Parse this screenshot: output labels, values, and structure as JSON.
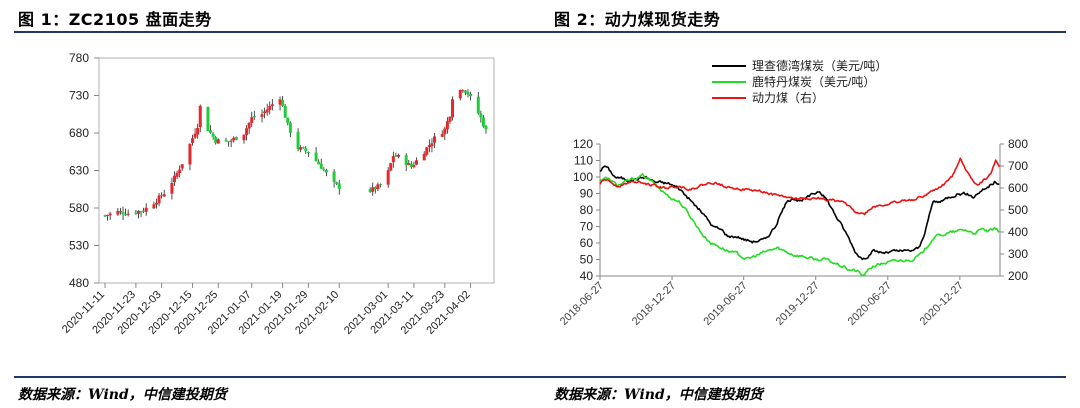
{
  "left": {
    "title": "图 1：ZC2105 盘面走势",
    "source": "数据来源：Wind，中信建投期货"
  },
  "right": {
    "title": "图 2：动力煤现货走势",
    "source": "数据来源：Wind，中信建投期货"
  },
  "colors": {
    "rule": "#1f3864",
    "up": "#e8262b",
    "down": "#1ecc3a",
    "line_black": "#000000",
    "line_green": "#22dd22",
    "line_red": "#ee1111"
  },
  "chart_data": [
    {
      "type": "candlestick",
      "title": "",
      "xlabel": "",
      "ylabel": "",
      "ylim": [
        480,
        780
      ],
      "yticks": [
        480,
        530,
        580,
        630,
        680,
        730,
        780
      ],
      "xticks": [
        "2020-11-11",
        "2020-11-23",
        "2020-12-03",
        "2020-12-15",
        "2020-12-25",
        "2021-01-07",
        "2021-01-19",
        "2021-01-29",
        "2021-02-10",
        "2021-03-01",
        "2021-03-11",
        "2021-03-23",
        "2021-04-02"
      ],
      "grid": false,
      "x_start": "2020-11-11",
      "x_end": "2021-04-08",
      "close_series": [
        [
          "2020-11-11",
          570
        ],
        [
          "2020-11-16",
          575
        ],
        [
          "2020-11-20",
          573
        ],
        [
          "2020-11-26",
          577
        ],
        [
          "2020-12-01",
          590
        ],
        [
          "2020-12-04",
          600
        ],
        [
          "2020-12-08",
          620
        ],
        [
          "2020-12-11",
          640
        ],
        [
          "2020-12-14",
          665
        ],
        [
          "2020-12-17",
          690
        ],
        [
          "2020-12-18",
          715
        ],
        [
          "2020-12-21",
          685
        ],
        [
          "2020-12-24",
          670
        ],
        [
          "2020-12-29",
          668
        ],
        [
          "2021-01-04",
          680
        ],
        [
          "2021-01-07",
          700
        ],
        [
          "2021-01-11",
          705
        ],
        [
          "2021-01-14",
          715
        ],
        [
          "2021-01-18",
          728
        ],
        [
          "2021-01-19",
          715
        ],
        [
          "2021-01-21",
          690
        ],
        [
          "2021-01-25",
          660
        ],
        [
          "2021-01-29",
          655
        ],
        [
          "2021-02-03",
          635
        ],
        [
          "2021-02-08",
          612
        ],
        [
          "2021-02-10",
          608
        ],
        [
          "2021-02-22",
          603
        ],
        [
          "2021-02-26",
          610
        ],
        [
          "2021-03-01",
          628
        ],
        [
          "2021-03-03",
          650
        ],
        [
          "2021-03-05",
          648
        ],
        [
          "2021-03-10",
          635
        ],
        [
          "2021-03-12",
          643
        ],
        [
          "2021-03-16",
          660
        ],
        [
          "2021-03-19",
          673
        ],
        [
          "2021-03-23",
          685
        ],
        [
          "2021-03-25",
          705
        ],
        [
          "2021-03-26",
          728
        ],
        [
          "2021-03-30",
          740
        ],
        [
          "2021-04-01",
          733
        ],
        [
          "2021-04-06",
          700
        ],
        [
          "2021-04-08",
          683
        ]
      ]
    },
    {
      "type": "line",
      "title": "",
      "xlabel": "",
      "xticks": [
        "2018-06-27",
        "2018-12-27",
        "2019-06-27",
        "2019-12-27",
        "2020-06-27",
        "2020-12-27"
      ],
      "x_start": "2018-06-27",
      "x_end": "2021-04-08",
      "y_left": {
        "ylim": [
          40,
          120
        ],
        "yticks": [
          40,
          50,
          60,
          70,
          80,
          90,
          100,
          110,
          120
        ]
      },
      "y_right": {
        "ylim": [
          200,
          800
        ],
        "yticks": [
          200,
          300,
          400,
          500,
          600,
          700,
          800
        ]
      },
      "legend_position": "top",
      "series": [
        {
          "name": "理查德湾煤炭（美元/吨）",
          "axis": "left",
          "color": "#000000",
          "points": [
            [
              "2018-06-27",
              104
            ],
            [
              "2018-07-10",
              107
            ],
            [
              "2018-08-05",
              100
            ],
            [
              "2018-09-10",
              98
            ],
            [
              "2018-10-20",
              100
            ],
            [
              "2018-11-15",
              97
            ],
            [
              "2018-12-20",
              96
            ],
            [
              "2019-01-15",
              93
            ],
            [
              "2019-02-15",
              85
            ],
            [
              "2019-03-15",
              78
            ],
            [
              "2019-04-10",
              70
            ],
            [
              "2019-05-01",
              68
            ],
            [
              "2019-05-20",
              64
            ],
            [
              "2019-06-10",
              64
            ],
            [
              "2019-07-01",
              62
            ],
            [
              "2019-07-20",
              61
            ],
            [
              "2019-08-20",
              62
            ],
            [
              "2019-09-15",
              70
            ],
            [
              "2019-10-10",
              83
            ],
            [
              "2019-10-30",
              88
            ],
            [
              "2019-11-20",
              85
            ],
            [
              "2019-12-10",
              88
            ],
            [
              "2020-01-05",
              92
            ],
            [
              "2020-01-25",
              86
            ],
            [
              "2020-02-10",
              79
            ],
            [
              "2020-03-01",
              71
            ],
            [
              "2020-03-20",
              63
            ],
            [
              "2020-04-05",
              55
            ],
            [
              "2020-04-25",
              50
            ],
            [
              "2020-05-20",
              55
            ],
            [
              "2020-06-20",
              54
            ],
            [
              "2020-07-20",
              55
            ],
            [
              "2020-08-20",
              55
            ],
            [
              "2020-09-15",
              57
            ],
            [
              "2020-10-01",
              68
            ],
            [
              "2020-10-20",
              85
            ],
            [
              "2020-11-10",
              85
            ],
            [
              "2020-11-30",
              88
            ],
            [
              "2020-12-20",
              90
            ],
            [
              "2021-01-10",
              90
            ],
            [
              "2021-01-30",
              88
            ],
            [
              "2021-02-20",
              92
            ],
            [
              "2021-03-10",
              94
            ],
            [
              "2021-03-25",
              97
            ],
            [
              "2021-04-08",
              95
            ]
          ]
        },
        {
          "name": "鹿特丹煤炭（美元/吨）",
          "axis": "left",
          "color": "#22dd22",
          "points": [
            [
              "2018-06-27",
              98
            ],
            [
              "2018-07-10",
              100
            ],
            [
              "2018-08-10",
              95
            ],
            [
              "2018-09-10",
              98
            ],
            [
              "2018-10-15",
              101
            ],
            [
              "2018-11-01",
              98
            ],
            [
              "2018-11-25",
              93
            ],
            [
              "2018-12-20",
              88
            ],
            [
              "2019-01-15",
              85
            ],
            [
              "2019-02-15",
              75
            ],
            [
              "2019-03-15",
              65
            ],
            [
              "2019-04-05",
              60
            ],
            [
              "2019-04-25",
              58
            ],
            [
              "2019-05-20",
              55
            ],
            [
              "2019-06-15",
              53
            ],
            [
              "2019-07-05",
              50
            ],
            [
              "2019-07-25",
              52
            ],
            [
              "2019-08-25",
              55
            ],
            [
              "2019-09-20",
              57
            ],
            [
              "2019-10-10",
              55
            ],
            [
              "2019-11-01",
              53
            ],
            [
              "2019-11-25",
              52
            ],
            [
              "2019-12-25",
              50
            ],
            [
              "2020-01-20",
              50
            ],
            [
              "2020-02-10",
              48
            ],
            [
              "2020-03-01",
              46
            ],
            [
              "2020-03-20",
              44
            ],
            [
              "2020-04-10",
              43
            ],
            [
              "2020-04-25",
              40
            ],
            [
              "2020-05-20",
              46
            ],
            [
              "2020-06-20",
              48
            ],
            [
              "2020-07-20",
              49
            ],
            [
              "2020-08-25",
              50
            ],
            [
              "2020-09-20",
              53
            ],
            [
              "2020-10-20",
              63
            ],
            [
              "2020-11-10",
              65
            ],
            [
              "2020-12-01",
              66
            ],
            [
              "2020-12-20",
              67
            ],
            [
              "2021-01-10",
              68
            ],
            [
              "2021-01-30",
              66
            ],
            [
              "2021-02-20",
              68
            ],
            [
              "2021-03-10",
              67
            ],
            [
              "2021-03-25",
              68
            ],
            [
              "2021-04-08",
              67
            ]
          ]
        },
        {
          "name": "动力煤（右）",
          "axis": "right",
          "color": "#ee1111",
          "points": [
            [
              "2018-06-27",
              620
            ],
            [
              "2018-07-10",
              640
            ],
            [
              "2018-08-10",
              610
            ],
            [
              "2018-09-10",
              625
            ],
            [
              "2018-10-10",
              630
            ],
            [
              "2018-11-10",
              610
            ],
            [
              "2018-12-10",
              600
            ],
            [
              "2019-01-10",
              610
            ],
            [
              "2019-02-10",
              595
            ],
            [
              "2019-03-10",
              610
            ],
            [
              "2019-04-10",
              625
            ],
            [
              "2019-05-10",
              610
            ],
            [
              "2019-06-10",
              600
            ],
            [
              "2019-07-10",
              590
            ],
            [
              "2019-08-10",
              585
            ],
            [
              "2019-09-10",
              570
            ],
            [
              "2019-10-10",
              560
            ],
            [
              "2019-11-10",
              550
            ],
            [
              "2019-12-10",
              555
            ],
            [
              "2020-01-10",
              550
            ],
            [
              "2020-02-10",
              545
            ],
            [
              "2020-03-10",
              530
            ],
            [
              "2020-04-10",
              490
            ],
            [
              "2020-04-28",
              480
            ],
            [
              "2020-05-20",
              515
            ],
            [
              "2020-06-20",
              525
            ],
            [
              "2020-07-20",
              535
            ],
            [
              "2020-08-20",
              545
            ],
            [
              "2020-09-20",
              560
            ],
            [
              "2020-10-20",
              585
            ],
            [
              "2020-11-20",
              620
            ],
            [
              "2020-12-10",
              660
            ],
            [
              "2020-12-28",
              740
            ],
            [
              "2021-01-10",
              690
            ],
            [
              "2021-01-25",
              640
            ],
            [
              "2021-02-10",
              615
            ],
            [
              "2021-02-28",
              640
            ],
            [
              "2021-03-15",
              660
            ],
            [
              "2021-03-28",
              730
            ],
            [
              "2021-04-08",
              690
            ]
          ]
        }
      ]
    }
  ]
}
